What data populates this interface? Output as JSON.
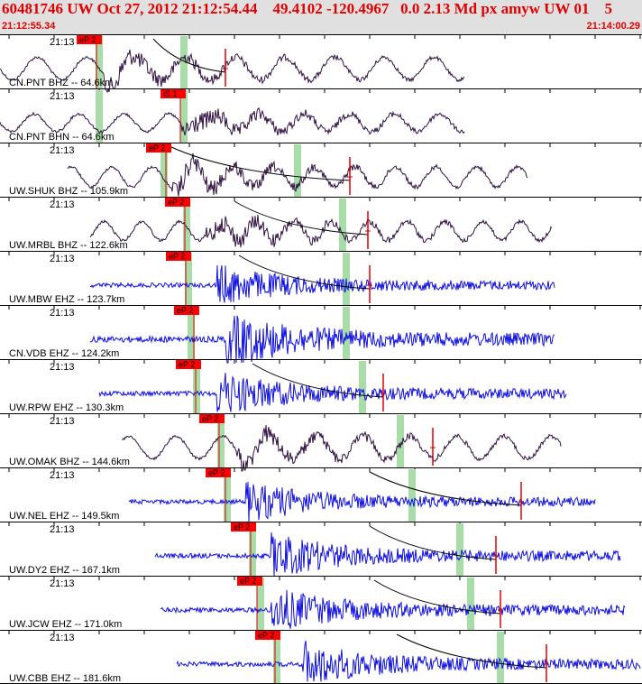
{
  "header": {
    "title": "60481746 UW Oct 27, 2012 21:12:54.44    49.4102 -120.4967   0.0 2.13 Md px amyw UW 01    5",
    "start_time": "21:12:55.34",
    "end_time": "21:14:00.29"
  },
  "colors": {
    "header_bg": "#e0e0e0",
    "header_text": "#e00000",
    "trace_broadband": "#301040",
    "trace_short_period": "#1010e0",
    "pick_box": "#ff0000",
    "window_band": "#a8dca8",
    "coda_curve": "#000000"
  },
  "traces": [
    {
      "time_label": "21:13",
      "station": "CN.PNT BHZ -- 64.6km",
      "pick": "eP 2",
      "kind": "bb",
      "x0": 0,
      "x1": 515,
      "pick_x": 107,
      "bands": [
        108,
        202
      ],
      "coda": [
        170,
        250
      ],
      "end_mark": 250,
      "amp": 18,
      "period": 55,
      "burst": 115
    },
    {
      "time_label": "21:13",
      "station": "CN.PNT BHN -- 64.6km",
      "pick": "iS 1",
      "kind": "bb",
      "x0": 0,
      "x1": 515,
      "pick_x": 200,
      "bands": [
        108,
        202
      ],
      "coda": null,
      "end_mark": null,
      "amp": 14,
      "period": 50,
      "burst": 200
    },
    {
      "time_label": "21:13",
      "station": "UW.SHUK BHZ -- 105.9km",
      "pick": "eP 2",
      "kind": "bb",
      "x0": 75,
      "x1": 585,
      "pick_x": 184,
      "bands": [
        180,
        328
      ],
      "coda": [
        190,
        388
      ],
      "end_mark": 388,
      "amp": 16,
      "period": 45,
      "burst": 190
    },
    {
      "time_label": "21:13",
      "station": "UW.MRBL BHZ -- 122.6km",
      "pick": "eP 2",
      "kind": "bb",
      "x0": 100,
      "x1": 612,
      "pick_x": 205,
      "bands": [
        205,
        378
      ],
      "coda": [
        260,
        408
      ],
      "end_mark": 408,
      "amp": 15,
      "period": 42,
      "burst": 228
    },
    {
      "time_label": "21:13",
      "station": "UW.MBW EHZ -- 123.7km",
      "pick": "eP 2",
      "kind": "sp",
      "x0": 100,
      "x1": 615,
      "pick_x": 206,
      "bands": [
        207,
        382
      ],
      "coda": [
        265,
        410
      ],
      "end_mark": 410,
      "amp": 20,
      "period": 0,
      "burst": 240
    },
    {
      "time_label": "21:13",
      "station": "CN.VDB EHZ -- 124.2km",
      "pick": "eP 2",
      "kind": "sp",
      "x0": 100,
      "x1": 615,
      "pick_x": 215,
      "bands": [
        210,
        382
      ],
      "coda": null,
      "end_mark": null,
      "amp": 28,
      "period": 0,
      "burst": 250
    },
    {
      "time_label": "21:13",
      "station": "UW.RPW EHZ -- 130.3km",
      "pick": "eP 2",
      "kind": "sp",
      "x0": 110,
      "x1": 628,
      "pick_x": 217,
      "bands": [
        216,
        400
      ],
      "coda": [
        280,
        425
      ],
      "end_mark": 425,
      "amp": 22,
      "period": 0,
      "burst": 240
    },
    {
      "time_label": "21:13",
      "station": "UW.OMAK BHZ -- 144.6km",
      "pick": "eP 2",
      "kind": "bb",
      "x0": 135,
      "x1": 622,
      "pick_x": 243,
      "bands": [
        243,
        442
      ],
      "coda": null,
      "end_mark": 480,
      "amp": 18,
      "period": 52,
      "burst": 262
    },
    {
      "time_label": "21:13",
      "station": "UW.NEL EHZ -- 149.5km",
      "pick": "eP 2",
      "kind": "sp",
      "x0": 143,
      "x1": 660,
      "pick_x": 250,
      "bands": [
        250,
        455
      ],
      "coda": [
        410,
        578
      ],
      "end_mark": 578,
      "amp": 20,
      "period": 0,
      "burst": 272
    },
    {
      "time_label": "21:13",
      "station": "UW.DY2 EHZ -- 167.1km",
      "pick": "eP 2",
      "kind": "sp",
      "x0": 172,
      "x1": 688,
      "pick_x": 278,
      "bands": [
        278,
        508
      ],
      "coda": [
        410,
        550
      ],
      "end_mark": 550,
      "amp": 22,
      "period": 0,
      "burst": 300
    },
    {
      "time_label": "21:13",
      "station": "UW.JCW EHZ -- 171.0km",
      "pick": "eP 2",
      "kind": "sp",
      "x0": 178,
      "x1": 693,
      "pick_x": 285,
      "bands": [
        287,
        520
      ],
      "coda": [
        415,
        555
      ],
      "end_mark": 555,
      "amp": 22,
      "period": 0,
      "burst": 300
    },
    {
      "time_label": "21:13",
      "station": "UW.CBB EHZ -- 181.6km",
      "pick": "eP 2",
      "kind": "sp",
      "x0": 196,
      "x1": 710,
      "pick_x": 305,
      "bands": [
        305,
        553
      ],
      "coda": [
        440,
        606
      ],
      "end_mark": 606,
      "amp": 22,
      "period": 0,
      "burst": 335
    }
  ]
}
